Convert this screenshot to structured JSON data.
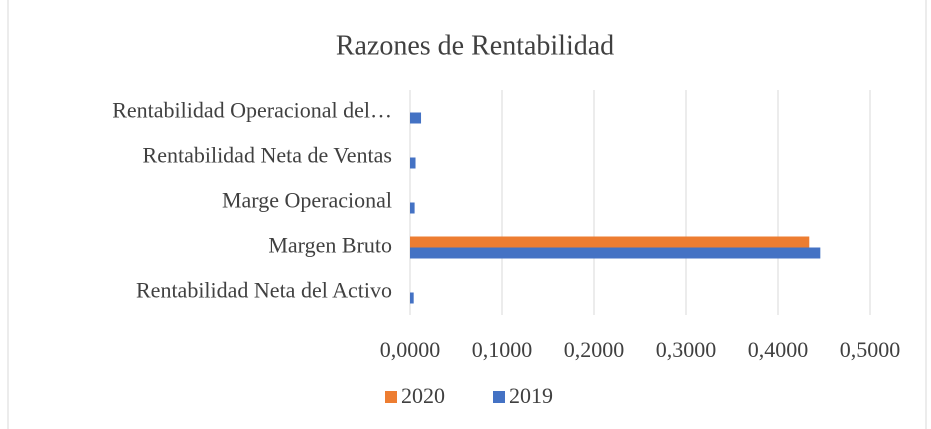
{
  "chart_data": {
    "type": "bar",
    "orientation": "horizontal",
    "title": "Razones de Rentabilidad",
    "categories": [
      "Rentabilidad Neta del Activo",
      "Margen Bruto",
      "Marge Operacional",
      "Rentabilidad Neta de Ventas",
      "Rentabilidad Operacional del…"
    ],
    "series": [
      {
        "name": "2020",
        "color": "#ed7d31",
        "values": [
          0,
          0.434,
          0,
          0,
          0
        ]
      },
      {
        "name": "2019",
        "color": "#4472c4",
        "values": [
          0.004,
          0.446,
          0.005,
          0.006,
          0.012
        ]
      }
    ],
    "xlim": [
      0,
      0.5
    ],
    "xticks": [
      {
        "value": 0,
        "label": "0,0000"
      },
      {
        "value": 0.1,
        "label": "0,1000"
      },
      {
        "value": 0.2,
        "label": "0,2000"
      },
      {
        "value": 0.3,
        "label": "0,3000"
      },
      {
        "value": 0.4,
        "label": "0,4000"
      },
      {
        "value": 0.5,
        "label": "0,5000"
      }
    ],
    "grid": true,
    "legend": "bottom"
  }
}
